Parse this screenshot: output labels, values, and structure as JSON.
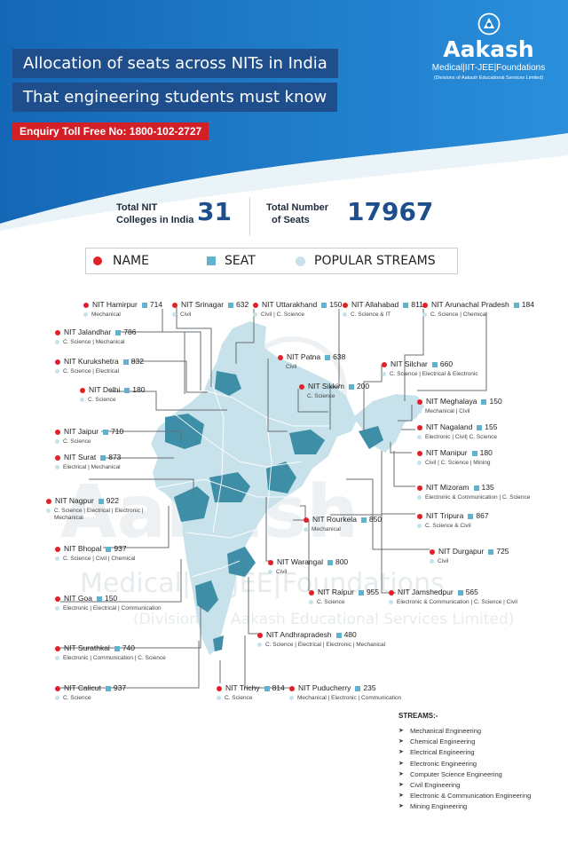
{
  "header": {
    "title_line1": "Allocation of seats across NITs in India",
    "title_line2": "That engineering students must know",
    "enquiry": "Enquiry Toll Free No: 1800-102-2727"
  },
  "logo": {
    "name": "Aakash",
    "tagline": "Medical|IIT-JEE|Foundations",
    "division": "(Divisions of Aakash Educational Services Limited)"
  },
  "stats": {
    "colleges_label_1": "Total NIT",
    "colleges_label_2": "Colleges in India",
    "colleges_value": "31",
    "seats_label_1": "Total Number",
    "seats_label_2": "of Seats",
    "seats_value": "17967"
  },
  "legend": {
    "name": "NAME",
    "seat": "SEAT",
    "streams": "POPULAR STREAMS"
  },
  "watermark": {
    "big": "Aakash",
    "mid": "Medical|IIT-JEE|Foundations",
    "small": "(Divisions of Aakash Educational Services Limited)"
  },
  "nits": [
    {
      "name": "NIT Hamirpur",
      "seats": "714",
      "streams": "Mechanical"
    },
    {
      "name": "NIT Srinagar",
      "seats": "632",
      "streams": "Civil"
    },
    {
      "name": "NIT Uttarakhand",
      "seats": "150",
      "streams": "Civil | C. Science"
    },
    {
      "name": "NIT Allahabad",
      "seats": "811",
      "streams": "C. Science & IT"
    },
    {
      "name": "NIT Arunachal Pradesh",
      "seats": "184",
      "streams": "C. Science | Chemical"
    },
    {
      "name": "NIT Jalandhar",
      "seats": "786",
      "streams": "C. Science | Mechanical"
    },
    {
      "name": "NIT Kurukshetra",
      "seats": "832",
      "streams": "C. Science | Electrical"
    },
    {
      "name": "NIT Patna",
      "seats": "638",
      "streams": "Civil"
    },
    {
      "name": "NIT Silchar",
      "seats": "660",
      "streams": "C. Science | Electrical & Electronic"
    },
    {
      "name": "NIT Delhi",
      "seats": "180",
      "streams": "C. Science"
    },
    {
      "name": "NIT Sikkim",
      "seats": "200",
      "streams": "C. Science"
    },
    {
      "name": "NIT Meghalaya",
      "seats": "150",
      "streams": "Mechanical | Civil"
    },
    {
      "name": "NIT Jaipur",
      "seats": "710",
      "streams": "C. Science"
    },
    {
      "name": "NIT Nagaland",
      "seats": "155",
      "streams": "Electronic | Civil| C. Science"
    },
    {
      "name": "NIT Surat",
      "seats": "873",
      "streams": "Electrical | Mechanical"
    },
    {
      "name": "NIT Manipur",
      "seats": "180",
      "streams": "Civil | C. Science | Mining"
    },
    {
      "name": "NIT Mizoram",
      "seats": "135",
      "streams": "Electronic & Communication | C. Science"
    },
    {
      "name": "NIT Nagpur",
      "seats": "922",
      "streams": "C. Science | Electrical | Electronic | Mechanical"
    },
    {
      "name": "NIT Rourkela",
      "seats": "850",
      "streams": "Mechanical"
    },
    {
      "name": "NIT Tripura",
      "seats": "867",
      "streams": "C. Science & Civil"
    },
    {
      "name": "NIT Bhopal",
      "seats": "937",
      "streams": "C. Science | Civil | Chemical"
    },
    {
      "name": "NIT Durgapur",
      "seats": "725",
      "streams": "Civil"
    },
    {
      "name": "NIT Warangal",
      "seats": "800",
      "streams": "Civil"
    },
    {
      "name": "NIT Goa",
      "seats": "150",
      "streams": "Electronic | Electrical | Communication"
    },
    {
      "name": "NIT Raipur",
      "seats": "955",
      "streams": "C. Science"
    },
    {
      "name": "NIT Jamshedpur",
      "seats": "565",
      "streams": "Electronic & Communication | C. Science | Civil"
    },
    {
      "name": "NIT Andhrapradesh",
      "seats": "480",
      "streams": "C. Science | Electrical | Electronic | Mechanical"
    },
    {
      "name": "NIT Surathkal",
      "seats": "740",
      "streams": "Electronic | Communication | C. Science"
    },
    {
      "name": "NIT Calicut",
      "seats": "937",
      "streams": "C. Science"
    },
    {
      "name": "NIT Trichy",
      "seats": "814",
      "streams": "C. Science"
    },
    {
      "name": "NIT Puducherry",
      "seats": "235",
      "streams": "Mechanical | Electronic | Communication"
    }
  ],
  "streams_list": {
    "title": "STREAMS:-",
    "items": [
      "Mechanical Engineering",
      "Chemical Engineering",
      "Electrical Engineering",
      "Electronic Engineering",
      "Computer Science Engineering",
      "Civil Engineering",
      "Electronic & Communication Engineering",
      "Mining Engineering"
    ]
  },
  "colors": {
    "header_blue": "#1a75c4",
    "banner_navy": "#1e4f8c",
    "enquiry_red": "#d32027",
    "map_light": "#c7e2ea",
    "map_dark": "#3d8ea6",
    "name_dot": "#e1202a",
    "seat_square": "#5fb3cc"
  }
}
